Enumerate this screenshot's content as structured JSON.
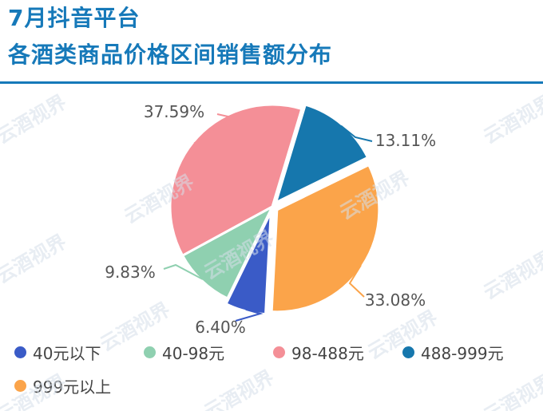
{
  "title": {
    "line1": "7月抖音平台",
    "line2": "各酒类商品价格区间销售额分布"
  },
  "watermark": "云酒视界",
  "colors": {
    "title": "#1679b9",
    "label_text": "#555555",
    "leader_line": "#888888"
  },
  "chart_data": {
    "type": "pie",
    "title": "7月抖音平台各酒类商品价格区间销售额分布",
    "categories": [
      "40元以下",
      "40-98元",
      "98-488元",
      "488-999元",
      "999元以上"
    ],
    "values": [
      6.4,
      9.83,
      37.59,
      13.11,
      33.08
    ],
    "labels": [
      "6.40%",
      "9.83%",
      "37.59%",
      "13.11%",
      "33.08%"
    ],
    "colors": [
      "#3a5bc7",
      "#8fd0b0",
      "#f48f97",
      "#1677ad",
      "#fba44a"
    ],
    "exploded": [
      "40元以下",
      "488-999元",
      "999元以上"
    ],
    "legend_position": "bottom"
  }
}
